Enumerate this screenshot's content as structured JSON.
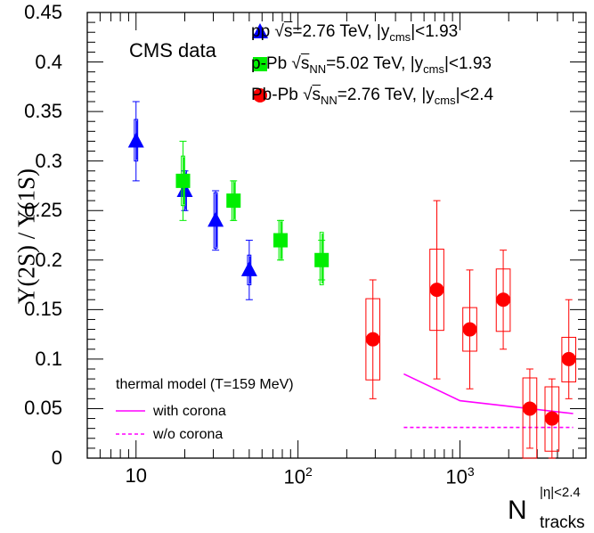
{
  "chart_data": {
    "type": "scatter",
    "title": "",
    "xlabel": "N",
    "xlabel_sup": "|η|<2.4",
    "xlabel_sub": "tracks",
    "ylabel": "Υ(2S) / Υ(1S)",
    "xscale": "log",
    "xlim": [
      5,
      6000
    ],
    "ylim": [
      0,
      0.45
    ],
    "annotation": "CMS data",
    "x_ticks": [
      {
        "value": 10,
        "base": "10",
        "exp": ""
      },
      {
        "value": 100,
        "base": "10",
        "exp": "2"
      },
      {
        "value": 1000,
        "base": "10",
        "exp": "3"
      }
    ],
    "y_ticks": [
      "0",
      "0.05",
      "0.1",
      "0.15",
      "0.2",
      "0.25",
      "0.3",
      "0.35",
      "0.4",
      "0.45"
    ],
    "y_tick_values": [
      0,
      0.05,
      0.1,
      0.15,
      0.2,
      0.25,
      0.3,
      0.35,
      0.4,
      0.45
    ],
    "series": [
      {
        "name": "pp",
        "legend_pre": "pp  √",
        "legend_s": "s",
        "legend_sub": "",
        "legend_mid": "=2.76 TeV, |y",
        "legend_ysub": "cms",
        "legend_post": "|<1.93",
        "marker": "triangle",
        "color": "#0000ff",
        "points": [
          {
            "x": 10,
            "y": 0.32,
            "stat": [
              0.28,
              0.36
            ],
            "syst": [
              0.3,
              0.342
            ]
          },
          {
            "x": 20,
            "y": 0.27,
            "stat": [
              0.25,
              0.29
            ],
            "syst": [
              0.25,
              0.29
            ]
          },
          {
            "x": 31,
            "y": 0.24,
            "stat": [
              0.21,
              0.27
            ],
            "syst": [
              0.212,
              0.268
            ]
          },
          {
            "x": 50,
            "y": 0.19,
            "stat": [
              0.16,
              0.22
            ],
            "syst": [
              0.175,
              0.205
            ]
          }
        ]
      },
      {
        "name": "p-Pb",
        "legend_pre": "p-Pb  √",
        "legend_s": "s",
        "legend_sub": "NN",
        "legend_mid": "=5.02 TeV, |y",
        "legend_ysub": "cms",
        "legend_post": "|<1.93",
        "marker": "square",
        "color": "#00ee00",
        "points": [
          {
            "x": 19.5,
            "y": 0.28,
            "stat": [
              0.24,
              0.32
            ],
            "syst": [
              0.255,
              0.305
            ]
          },
          {
            "x": 40,
            "y": 0.26,
            "stat": [
              0.24,
              0.28
            ],
            "syst": [
              0.24,
              0.28
            ]
          },
          {
            "x": 78,
            "y": 0.22,
            "stat": [
              0.2,
              0.24
            ],
            "syst": [
              0.2,
              0.24
            ]
          },
          {
            "x": 140,
            "y": 0.2,
            "stat": [
              0.18,
              0.22
            ],
            "syst": [
              0.175,
              0.228
            ]
          }
        ]
      },
      {
        "name": "Pb-Pb",
        "legend_pre": "Pb-Pb  √",
        "legend_s": "s",
        "legend_sub": "NN",
        "legend_mid": "=2.76 TeV, |y",
        "legend_ysub": "cms",
        "legend_post": "|<2.4",
        "marker": "circle",
        "color": "#ff0000",
        "points": [
          {
            "x": 290,
            "y": 0.12,
            "stat": [
              0.06,
              0.18
            ],
            "syst": [
              0.079,
              0.161
            ],
            "bw": 0.043
          },
          {
            "x": 720,
            "y": 0.17,
            "stat": [
              0.08,
              0.26
            ],
            "syst": [
              0.129,
              0.211
            ],
            "bw": 0.043
          },
          {
            "x": 1150,
            "y": 0.13,
            "stat": [
              0.07,
              0.19
            ],
            "syst": [
              0.108,
              0.152
            ],
            "bw": 0.043
          },
          {
            "x": 1850,
            "y": 0.16,
            "stat": [
              0.11,
              0.21
            ],
            "syst": [
              0.128,
              0.191
            ],
            "bw": 0.043
          },
          {
            "x": 2700,
            "y": 0.05,
            "stat": [
              0.01,
              0.09
            ],
            "syst": [
              0.0,
              0.081
            ],
            "bw": 0.043
          },
          {
            "x": 3700,
            "y": 0.04,
            "stat": [
              0.0,
              0.08
            ],
            "syst": [
              0.007,
              0.072
            ],
            "bw": 0.043
          },
          {
            "x": 4700,
            "y": 0.1,
            "stat": [
              0.06,
              0.16
            ],
            "syst": [
              0.077,
              0.122
            ],
            "bw": 0.043
          }
        ]
      }
    ],
    "model": {
      "title": "thermal model (T=159 MeV)",
      "color": "#ff00ff",
      "lines": [
        {
          "name": "with corona",
          "style": "solid",
          "points": [
            [
              450,
              0.085
            ],
            [
              1000,
              0.058
            ],
            [
              5000,
              0.045
            ]
          ]
        },
        {
          "name": "w/o corona",
          "style": "dashed",
          "points": [
            [
              450,
              0.031
            ],
            [
              5000,
              0.031
            ]
          ]
        }
      ]
    },
    "grid": false,
    "legend_position": "top-right"
  }
}
